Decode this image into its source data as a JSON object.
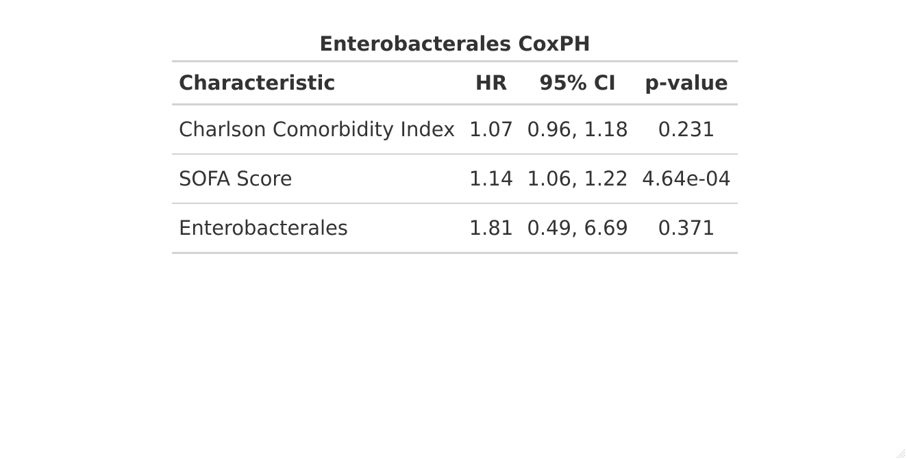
{
  "table": {
    "title": "Enterobacterales CoxPH",
    "headers": {
      "characteristic": "Characteristic",
      "hr": "HR",
      "ci": "95% CI",
      "p": "p-value"
    },
    "rows": [
      {
        "characteristic": "Charlson Comorbidity Index",
        "hr": "1.07",
        "ci": "0.96, 1.18",
        "p": "0.231"
      },
      {
        "characteristic": "SOFA Score",
        "hr": "1.14",
        "ci": "1.06, 1.22",
        "p": "4.64e-04"
      },
      {
        "characteristic": "Enterobacterales",
        "hr": "1.81",
        "ci": "0.49, 6.69",
        "p": "0.371"
      }
    ]
  }
}
